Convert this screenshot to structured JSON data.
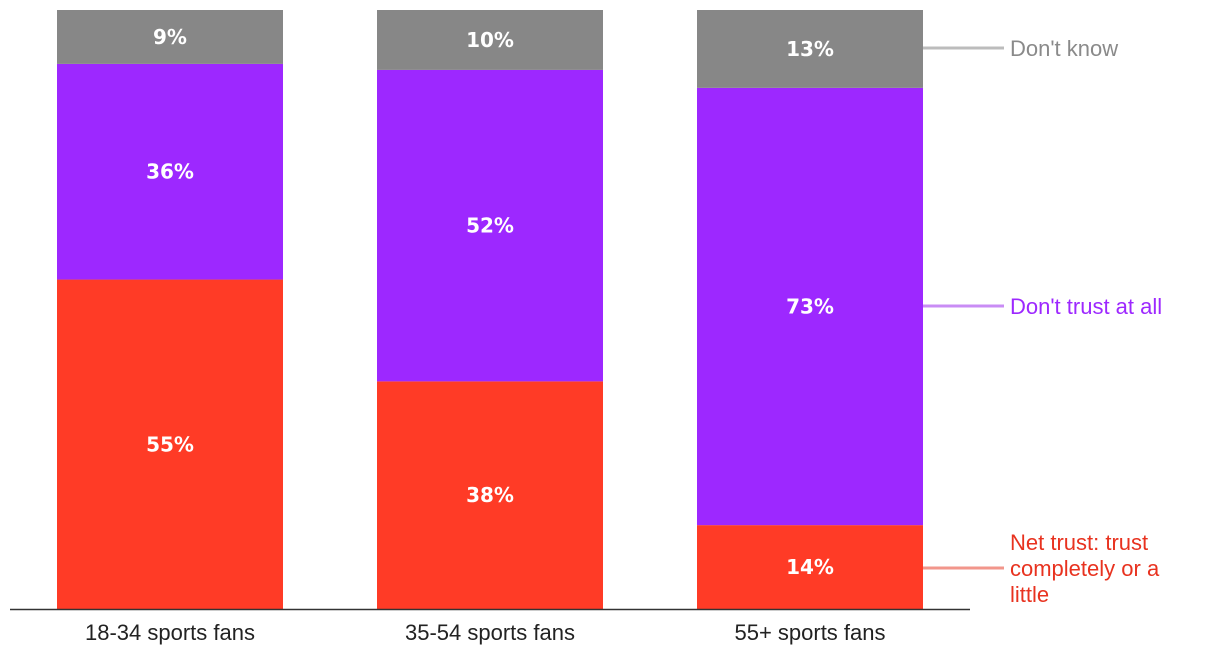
{
  "chart_data": {
    "type": "bar",
    "stacked": true,
    "orientation": "vertical",
    "categories": [
      "18-34 sports fans",
      "35-54 sports fans",
      "55+ sports fans"
    ],
    "series": [
      {
        "name": "Net trust: trust completely or a little",
        "color": "#ff3b26",
        "values": [
          55,
          38,
          14
        ],
        "labels": [
          "55%",
          "38%",
          "14%"
        ]
      },
      {
        "name": "Don't trust at all",
        "color": "#9d28ff",
        "values": [
          36,
          52,
          73
        ],
        "labels": [
          "36%",
          "52%",
          "73%"
        ]
      },
      {
        "name": "Don't know",
        "color": "#878787",
        "values": [
          9,
          10,
          13
        ],
        "labels": [
          "9%",
          "10%",
          "13%"
        ]
      }
    ],
    "legend": {
      "placement": "right",
      "items": [
        {
          "series": "Don't know",
          "lines": [
            "Don't know"
          ],
          "text_color": "#8a8a8a",
          "leader_color": "#bcbcbc"
        },
        {
          "series": "Don't trust at all",
          "lines": [
            "Don't trust at all"
          ],
          "text_color": "#9d28ff",
          "leader_color": "#c98cf5"
        },
        {
          "series": "Net trust: trust completely or a little",
          "lines": [
            "Net trust: trust",
            "completely or a",
            "little"
          ],
          "text_color": "#e8321f",
          "leader_color": "#f2968b"
        }
      ]
    },
    "title": "",
    "xlabel": "",
    "ylabel": "",
    "grid": false
  }
}
